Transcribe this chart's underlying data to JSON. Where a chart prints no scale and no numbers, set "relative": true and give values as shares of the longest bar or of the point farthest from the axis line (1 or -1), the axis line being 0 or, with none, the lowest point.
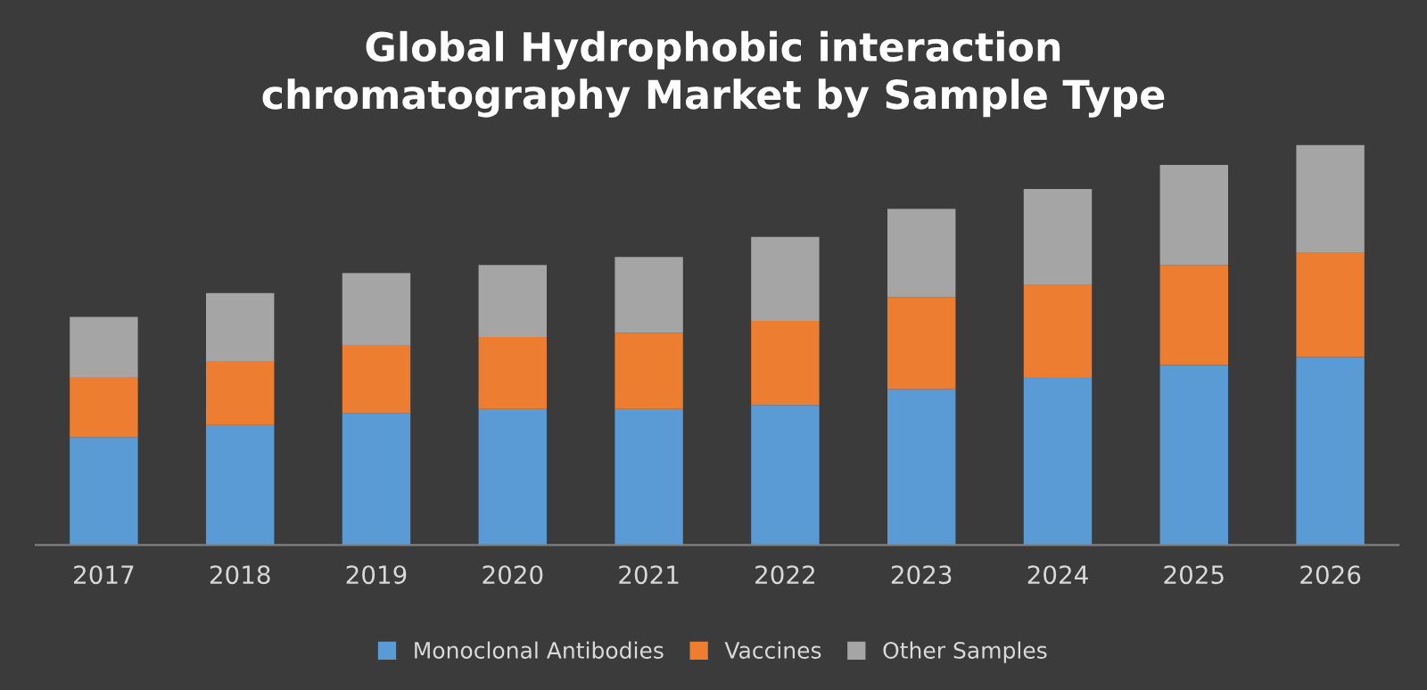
{
  "chart_data": {
    "type": "bar",
    "title": "Global Hydrophobic interaction\nchromatography Market by Sample Type",
    "stacked": true,
    "relative": true,
    "tick_labels": "x",
    "legend": "bottom",
    "grid": false,
    "categories": [
      "2017",
      "2018",
      "2019",
      "2020",
      "2021",
      "2022",
      "2023",
      "2024",
      "2025",
      "2026"
    ],
    "series": [
      {
        "name": "Monoclonal Antibodies",
        "color": "#5b9bd5",
        "values": [
          0.27,
          0.3,
          0.33,
          0.34,
          0.34,
          0.35,
          0.39,
          0.42,
          0.45,
          0.47
        ]
      },
      {
        "name": "Vaccines",
        "color": "#ed7d31",
        "values": [
          0.15,
          0.16,
          0.17,
          0.18,
          0.19,
          0.21,
          0.23,
          0.23,
          0.25,
          0.26
        ]
      },
      {
        "name": "Other Samples",
        "color": "#a5a5a5",
        "values": [
          0.15,
          0.17,
          0.18,
          0.18,
          0.19,
          0.21,
          0.22,
          0.24,
          0.25,
          0.27
        ]
      }
    ]
  }
}
